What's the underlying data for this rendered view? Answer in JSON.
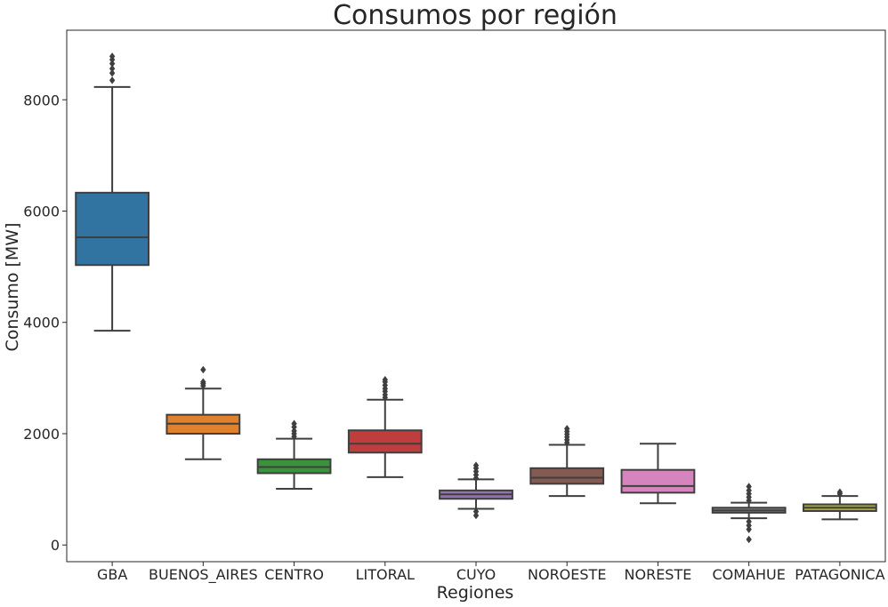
{
  "chart_data": {
    "type": "box",
    "title": "Consumos por región",
    "xlabel": "Regiones",
    "ylabel": "Consumo [MW]",
    "ylim": [
      -300,
      9250
    ],
    "yticks": [
      0,
      2000,
      4000,
      6000,
      8000
    ],
    "grid": false,
    "categories": [
      "GBA",
      "BUENOS_AIRES",
      "CENTRO",
      "LITORAL",
      "CUYO",
      "NOROESTE",
      "NORESTE",
      "COMAHUE",
      "PATAGONICA"
    ],
    "colors": [
      "#3274a1",
      "#e1812c",
      "#3a923a",
      "#c03d3e",
      "#9372b2",
      "#845b53",
      "#d684bd",
      "#7f7f7f",
      "#a9aa35"
    ],
    "boxes": [
      {
        "whisker_low": 3850,
        "q1": 5030,
        "median": 5530,
        "q3": 6330,
        "whisker_high": 8230,
        "outliers": [
          8350,
          8480,
          8560,
          8650,
          8720,
          8780
        ]
      },
      {
        "whisker_low": 1540,
        "q1": 2000,
        "median": 2180,
        "q3": 2340,
        "whisker_high": 2810,
        "outliers": [
          2860,
          2900,
          2930,
          3150
        ]
      },
      {
        "whisker_low": 1010,
        "q1": 1290,
        "median": 1400,
        "q3": 1540,
        "whisker_high": 1910,
        "outliers": [
          1950,
          2000,
          2050,
          2120,
          2180
        ]
      },
      {
        "whisker_low": 1220,
        "q1": 1660,
        "median": 1820,
        "q3": 2060,
        "whisker_high": 2610,
        "outliers": [
          2650,
          2700,
          2760,
          2810,
          2870,
          2930,
          2970
        ]
      },
      {
        "whisker_low": 650,
        "q1": 830,
        "median": 910,
        "q3": 980,
        "whisker_high": 1180,
        "outliers": [
          530,
          600,
          1200,
          1260,
          1320,
          1380,
          1430
        ]
      },
      {
        "whisker_low": 880,
        "q1": 1100,
        "median": 1210,
        "q3": 1380,
        "whisker_high": 1800,
        "outliers": [
          1840,
          1890,
          1940,
          1990,
          2040,
          2090
        ]
      },
      {
        "whisker_low": 750,
        "q1": 940,
        "median": 1060,
        "q3": 1350,
        "whisker_high": 1820,
        "outliers": []
      },
      {
        "whisker_low": 480,
        "q1": 580,
        "median": 620,
        "q3": 670,
        "whisker_high": 760,
        "outliers": [
          100,
          280,
          350,
          420,
          800,
          860,
          920,
          980,
          1050
        ]
      },
      {
        "whisker_low": 460,
        "q1": 610,
        "median": 670,
        "q3": 730,
        "whisker_high": 880,
        "outliers": [
          920,
          950
        ]
      }
    ]
  }
}
